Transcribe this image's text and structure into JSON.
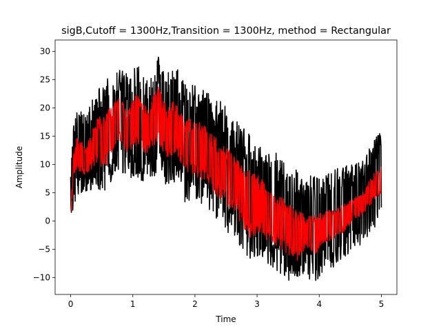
{
  "chart_data": {
    "type": "line",
    "title": "sigB,Cutoff = 1300Hz,Transition = 1300Hz, method = Rectangular",
    "xlabel": "Time",
    "ylabel": "Amplitude",
    "xlim": [
      -0.25,
      5.25
    ],
    "ylim": [
      -13,
      32
    ],
    "xticks": [
      0,
      1,
      2,
      3,
      4,
      5
    ],
    "xtick_labels": [
      "0",
      "1",
      "2",
      "3",
      "4",
      "5"
    ],
    "yticks": [
      -10,
      -5,
      0,
      5,
      10,
      15,
      20,
      25,
      30
    ],
    "ytick_labels": [
      "−10",
      "−5",
      "0",
      "5",
      "10",
      "15",
      "20",
      "25",
      "30"
    ],
    "grid": false,
    "series": [
      {
        "color": "#000000",
        "kind": "noisy band (original signal)",
        "x": [
          0,
          0.05,
          0.1,
          0.25,
          0.4,
          0.55,
          0.7,
          0.8,
          0.9,
          1.05,
          1.15,
          1.25,
          1.4,
          1.55,
          1.7,
          1.85,
          2.0,
          2.15,
          2.3,
          2.45,
          2.6,
          2.75,
          2.9,
          3.05,
          3.2,
          3.35,
          3.5,
          3.65,
          3.8,
          3.95,
          4.1,
          4.25,
          4.4,
          4.55,
          4.7,
          4.85,
          5.0
        ],
        "upper": [
          10,
          17,
          20,
          19,
          23,
          25,
          26,
          27.5,
          26,
          29,
          27,
          26,
          29.5,
          26,
          28,
          24,
          24,
          23,
          22,
          21,
          19,
          17,
          15,
          14,
          12,
          12,
          10,
          9,
          8,
          8,
          8,
          9,
          10,
          10,
          11,
          14,
          16
        ],
        "lower": [
          1,
          2,
          4,
          5,
          6,
          5,
          8,
          9,
          7,
          8,
          7,
          7,
          8,
          6,
          7,
          3,
          3,
          3,
          1,
          -1,
          -3,
          -5,
          -7,
          -6,
          -8,
          -9,
          -10.5,
          -11,
          -10,
          -11,
          -9,
          -8,
          -7,
          -5,
          -4,
          -2,
          1
        ]
      },
      {
        "color": "#ff0000",
        "kind": "filtered signal",
        "x": [
          0,
          0.05,
          0.1,
          0.25,
          0.4,
          0.55,
          0.7,
          0.8,
          0.9,
          1.05,
          1.15,
          1.25,
          1.4,
          1.55,
          1.7,
          1.85,
          2.0,
          2.15,
          2.3,
          2.45,
          2.6,
          2.75,
          2.9,
          3.05,
          3.2,
          3.35,
          3.5,
          3.65,
          3.8,
          3.95,
          4.1,
          4.25,
          4.4,
          4.55,
          4.7,
          4.85,
          5.0
        ],
        "upper": [
          3,
          12,
          15,
          13,
          18,
          19,
          21,
          22,
          20,
          23,
          21,
          20,
          24,
          20,
          22,
          18,
          18,
          17,
          15,
          14,
          12,
          10,
          9,
          8,
          5,
          5,
          3,
          2,
          1,
          1,
          2,
          2,
          3,
          4,
          5,
          8,
          10
        ],
        "lower": [
          1,
          7,
          9,
          8,
          10,
          9,
          13,
          14,
          12,
          13,
          12,
          12,
          14,
          11,
          12,
          8,
          8,
          7,
          5,
          3,
          2,
          -1,
          -3,
          -2,
          -4,
          -5,
          -6,
          -7,
          -5,
          -6,
          -4,
          -3,
          -2,
          0,
          1,
          3,
          5
        ]
      }
    ]
  }
}
